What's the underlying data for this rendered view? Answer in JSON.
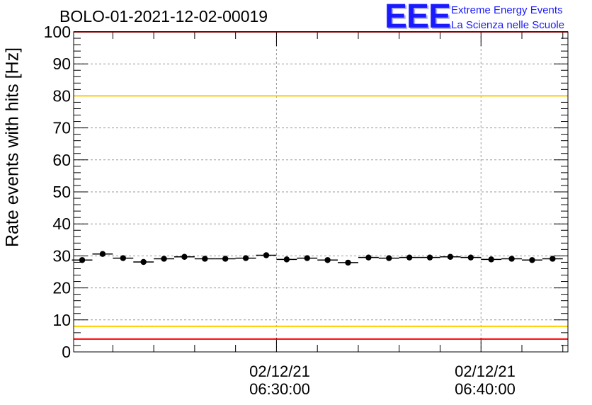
{
  "header": {
    "title": "BOLO-01-2021-12-02-00019",
    "logo_mark": "EEE",
    "logo_line1": "Extreme Energy Events",
    "logo_line2": "La Scienza nelle Scuole"
  },
  "chart_data": {
    "type": "scatter",
    "title": "BOLO-01-2021-12-02-00019",
    "ylabel": "Rate events with hits [Hz]",
    "xlabel": "",
    "ylim": [
      0,
      100
    ],
    "yticks": [
      0,
      10,
      20,
      30,
      40,
      50,
      60,
      70,
      80,
      90,
      100
    ],
    "xlim_minutes": [
      "06:20:05",
      "06:44:15"
    ],
    "xtick_labels": [
      {
        "date": "02/12/21",
        "time": "06:30:00"
      },
      {
        "date": "02/12/21",
        "time": "06:40:00"
      }
    ],
    "grid": true,
    "reference_lines": [
      {
        "y": 100,
        "color": "#ff0000"
      },
      {
        "y": 80,
        "color": "#ffcc00"
      },
      {
        "y": 8,
        "color": "#ffcc00"
      },
      {
        "y": 4,
        "color": "#ff0000"
      }
    ],
    "series": [
      {
        "marker_color": "#000000",
        "x": [
          "06:20:30",
          "06:21:30",
          "06:22:30",
          "06:23:30",
          "06:24:30",
          "06:25:30",
          "06:26:30",
          "06:27:30",
          "06:28:30",
          "06:29:30",
          "06:30:30",
          "06:31:30",
          "06:32:30",
          "06:33:30",
          "06:34:30",
          "06:35:30",
          "06:36:30",
          "06:37:30",
          "06:38:30",
          "06:39:30",
          "06:40:30",
          "06:41:30",
          "06:42:30",
          "06:43:30"
        ],
        "values": [
          28.7,
          30.6,
          29.3,
          28.1,
          29.1,
          29.7,
          29.1,
          29.1,
          29.3,
          30.2,
          28.9,
          29.3,
          28.7,
          27.9,
          29.5,
          29.3,
          29.5,
          29.5,
          29.7,
          29.5,
          28.9,
          29.1,
          28.7,
          29.1
        ]
      }
    ]
  }
}
